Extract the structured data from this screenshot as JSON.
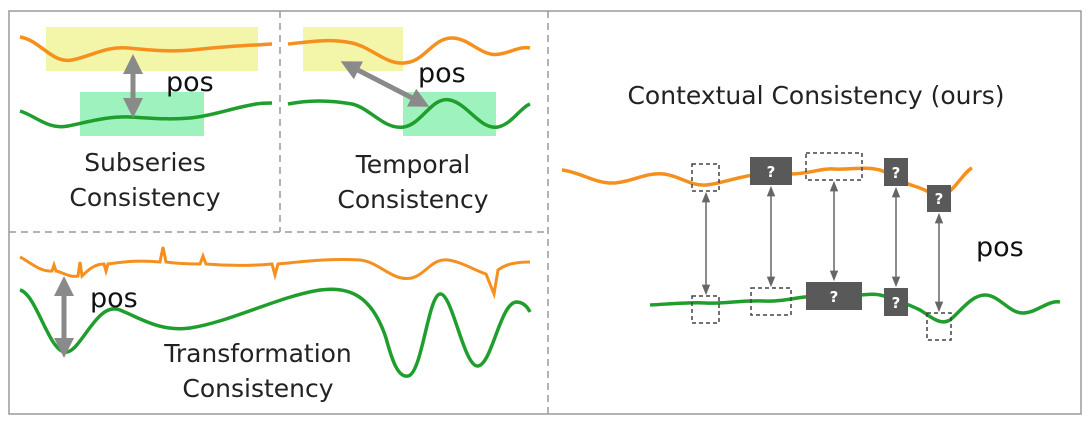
{
  "panels": {
    "subseries": {
      "line1": "Subseries",
      "line2": "Consistency",
      "pair_label": "pos"
    },
    "temporal": {
      "line1": "Temporal",
      "line2": "Consistency",
      "pair_label": "pos"
    },
    "transformation": {
      "line1": "Transformation",
      "line2": "Consistency",
      "pair_label": "pos"
    },
    "contextual": {
      "title": "Contextual Consistency (ours)",
      "pair_label": "pos",
      "masked_symbol": "?"
    }
  },
  "colors": {
    "series_a": "#f5901e",
    "series_b": "#1f9e2d",
    "highlight_yellow": "#f3f5a8",
    "highlight_green": "#9ef2bd",
    "arrow": "#8a8a8a",
    "mask_box": "#595959",
    "panel_border": "#9a9a9a"
  }
}
